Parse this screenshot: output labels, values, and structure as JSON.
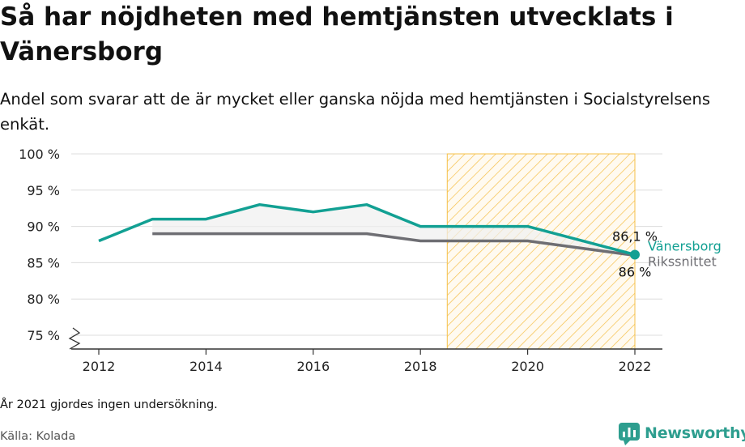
{
  "title": "Så har nöjdheten med hemtjänsten utvecklats i Vänersborg",
  "subtitle": "Andel som svarar att de är mycket eller ganska nöjda med hemtjänsten i Socialstyrelsens enkät.",
  "footnote": "År 2021 gjordes ingen undersökning.",
  "source": "Källa: Kolada",
  "brand": "Newsworthy",
  "colors": {
    "vanersborg": "#12a093",
    "riket": "#6e6e73",
    "highlight": "#f5c04a",
    "brand": "#2e9e8f"
  },
  "chart_data": {
    "type": "line",
    "x": [
      2012,
      2013,
      2014,
      2015,
      2016,
      2017,
      2018,
      2019,
      2020,
      2022
    ],
    "series": [
      {
        "name": "Vänersborg",
        "values": [
          88,
          91,
          91,
          93,
          92,
          93,
          90,
          90,
          90,
          86.1
        ]
      },
      {
        "name": "Rikssnittet",
        "values": [
          null,
          89,
          89,
          89,
          89,
          89,
          88,
          88,
          88,
          86
        ]
      }
    ],
    "x_ticks": [
      "2012",
      "2014",
      "2016",
      "2018",
      "2020",
      "2022"
    ],
    "y_ticks": [
      "75 %",
      "80 %",
      "85 %",
      "90 %",
      "95 %",
      "100 %"
    ],
    "ylim": [
      75,
      100
    ],
    "xlim": [
      2012,
      2022
    ],
    "highlight_range": [
      2018.5,
      2022
    ],
    "labels": {
      "vanersborg_last": "86,1 %",
      "riket_last": "86 %"
    },
    "grid": true
  }
}
